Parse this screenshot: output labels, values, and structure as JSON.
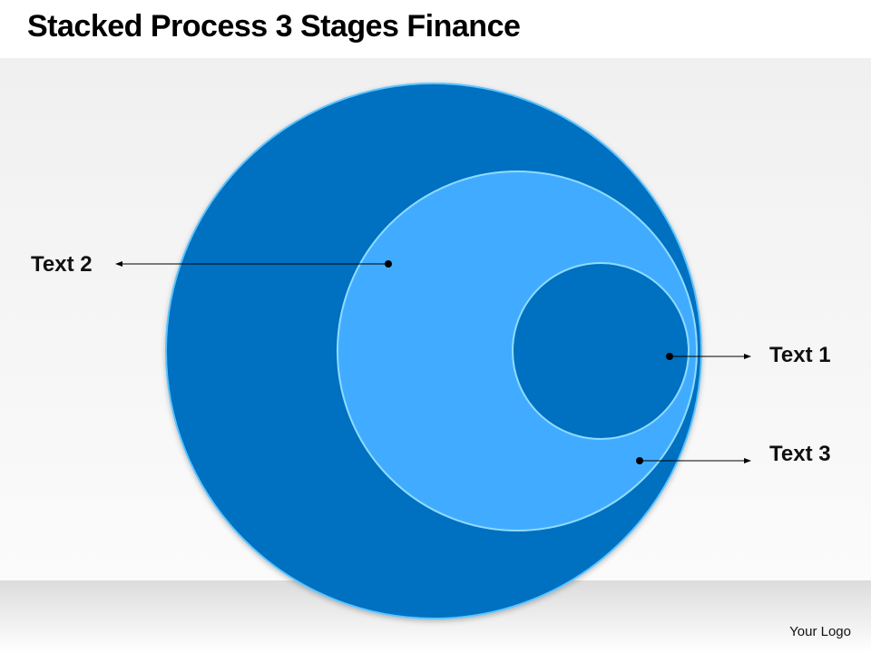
{
  "title": "Stacked Process 3 Stages Finance",
  "labels": {
    "text1": "Text 1",
    "text2": "Text 2",
    "text3": "Text 3"
  },
  "logo": "Your Logo",
  "colors": {
    "dark_blue": "#0070C0",
    "light_blue": "#41ACFF"
  }
}
